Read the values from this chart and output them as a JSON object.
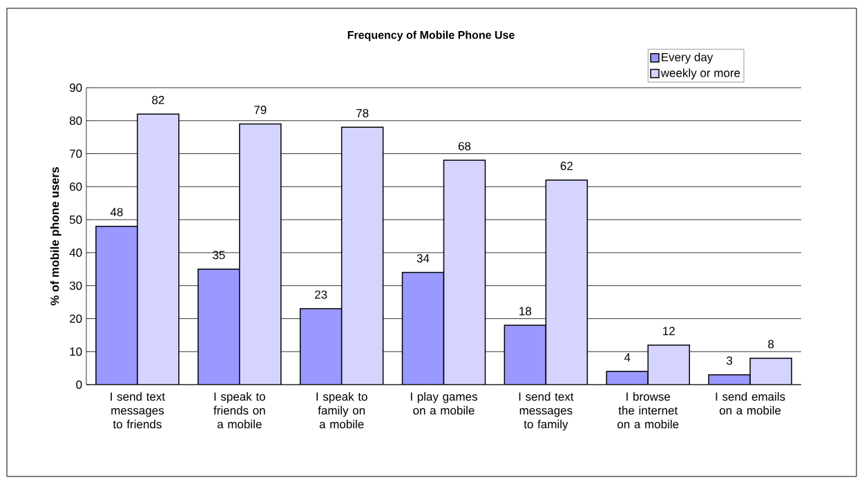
{
  "chart_data": {
    "type": "bar",
    "title": "Frequency of Mobile Phone Use",
    "ylabel": "% of mobile phone users",
    "categories": [
      "I send text messages to friends",
      "I speak to friends on a mobile",
      "I speak to family on a mobile",
      "I play games on a mobile",
      "I send text messages to family",
      "I browse the internet on a mobile",
      "I send emails on a mobile"
    ],
    "series": [
      {
        "name": "Every day",
        "color": "#9999ff",
        "values": [
          48,
          35,
          23,
          34,
          18,
          4,
          3
        ]
      },
      {
        "name": "weekly or more",
        "color": "#d4d4ff",
        "values": [
          82,
          79,
          78,
          68,
          62,
          12,
          8
        ]
      }
    ],
    "ylim": [
      0,
      90
    ],
    "yticks": [
      0,
      10,
      20,
      30,
      40,
      50,
      60,
      70,
      80,
      90
    ],
    "grid": "y",
    "legend": "top right",
    "data_labels": true
  }
}
